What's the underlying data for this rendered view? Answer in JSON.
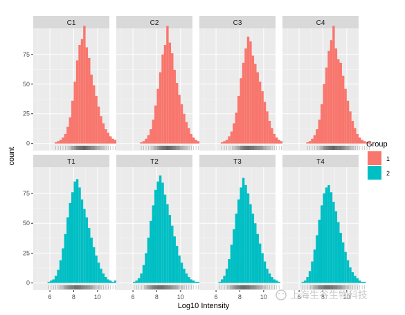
{
  "chart_data": {
    "type": "histogram",
    "xlabel": "Log10 Intensity",
    "ylabel": "count",
    "x_ticks": [
      6,
      8,
      10
    ],
    "x_range": [
      4.6,
      11.0
    ],
    "y_ticks": [
      0,
      25,
      50,
      75
    ],
    "y_range": [
      -6,
      97
    ],
    "grid": true,
    "legend": {
      "title": "Group",
      "position": "right",
      "entries": [
        {
          "label": "1",
          "color": "#F8766D"
        },
        {
          "label": "2",
          "color": "#00BFC4"
        }
      ]
    },
    "bins": {
      "start": 4.8,
      "width": 0.2
    },
    "facets": [
      {
        "label": "C1",
        "group": "1",
        "color": "#F8766D",
        "counts": [
          0,
          0,
          0,
          0,
          0,
          0,
          0,
          0,
          1,
          2,
          3,
          5,
          8,
          14,
          22,
          36,
          52,
          70,
          83,
          88,
          99,
          81,
          72,
          58,
          49,
          40,
          31,
          23,
          17,
          12,
          9,
          6,
          4,
          3,
          2,
          1,
          0,
          0,
          0,
          0,
          0
        ]
      },
      {
        "label": "C2",
        "group": "1",
        "color": "#F8766D",
        "counts": [
          0,
          0,
          0,
          0,
          0,
          0,
          0,
          0,
          0,
          1,
          2,
          4,
          7,
          12,
          20,
          32,
          46,
          60,
          75,
          83,
          99,
          85,
          76,
          62,
          51,
          41,
          33,
          25,
          18,
          13,
          8,
          5,
          3,
          2,
          1,
          1,
          0,
          0,
          0,
          0,
          0
        ]
      },
      {
        "label": "C3",
        "group": "1",
        "color": "#F8766D",
        "counts": [
          0,
          0,
          0,
          0,
          0,
          0,
          0,
          0,
          1,
          2,
          3,
          6,
          10,
          17,
          26,
          40,
          55,
          68,
          80,
          90,
          86,
          74,
          67,
          60,
          52,
          44,
          35,
          27,
          19,
          13,
          8,
          5,
          3,
          2,
          1,
          0,
          0,
          0,
          0,
          0,
          0
        ]
      },
      {
        "label": "C4",
        "group": "1",
        "color": "#F8766D",
        "counts": [
          0,
          0,
          0,
          0,
          0,
          0,
          0,
          0,
          0,
          1,
          2,
          4,
          7,
          12,
          20,
          33,
          50,
          64,
          78,
          87,
          99,
          80,
          71,
          68,
          57,
          46,
          36,
          27,
          19,
          13,
          8,
          5,
          3,
          2,
          1,
          1,
          0,
          0,
          0,
          0,
          0
        ]
      },
      {
        "label": "T1",
        "group": "2",
        "color": "#00BFC4",
        "counts": [
          0,
          0,
          0,
          0,
          0,
          1,
          2,
          3,
          6,
          11,
          19,
          29,
          41,
          55,
          67,
          76,
          85,
          87,
          80,
          70,
          62,
          55,
          46,
          38,
          30,
          23,
          17,
          12,
          8,
          5,
          3,
          2,
          1,
          2,
          1,
          0,
          0,
          0,
          0,
          0,
          0
        ]
      },
      {
        "label": "T2",
        "group": "2",
        "color": "#00BFC4",
        "counts": [
          0,
          0,
          0,
          0,
          0,
          0,
          1,
          2,
          4,
          8,
          15,
          25,
          38,
          52,
          65,
          78,
          85,
          90,
          84,
          74,
          66,
          57,
          48,
          39,
          31,
          23,
          17,
          12,
          8,
          5,
          3,
          2,
          1,
          1,
          0,
          0,
          0,
          0,
          0,
          0,
          0
        ]
      },
      {
        "label": "T3",
        "group": "2",
        "color": "#00BFC4",
        "counts": [
          0,
          0,
          0,
          0,
          0,
          0,
          0,
          1,
          3,
          6,
          12,
          20,
          32,
          45,
          58,
          70,
          80,
          88,
          82,
          75,
          66,
          58,
          50,
          41,
          33,
          25,
          18,
          12,
          8,
          5,
          3,
          2,
          1,
          0,
          0,
          0,
          0,
          0,
          0,
          0,
          0
        ]
      },
      {
        "label": "T4",
        "group": "2",
        "color": "#00BFC4",
        "counts": [
          0,
          0,
          0,
          0,
          0,
          0,
          0,
          1,
          2,
          5,
          10,
          18,
          28,
          40,
          53,
          65,
          75,
          80,
          82,
          76,
          68,
          60,
          51,
          42,
          34,
          26,
          19,
          13,
          9,
          6,
          4,
          2,
          1,
          1,
          0,
          0,
          0,
          0,
          0,
          0,
          0
        ]
      }
    ]
  },
  "watermark": {
    "text": "上海生谷生物科技"
  }
}
